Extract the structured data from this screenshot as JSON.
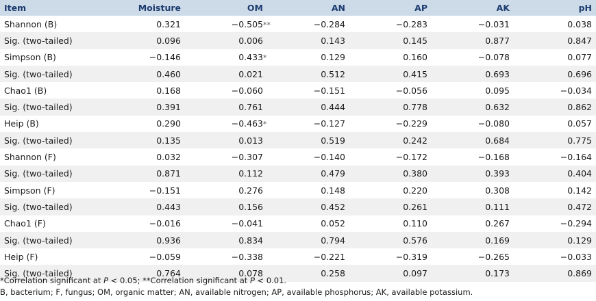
{
  "table": {
    "headers": [
      "Item",
      "Moisture",
      "OM",
      "AN",
      "AP",
      "AK",
      "pH"
    ],
    "rows": [
      {
        "item": "Shannon (B)",
        "cells": [
          {
            "v": "0.321"
          },
          {
            "v": "−0.505",
            "sig": "**"
          },
          {
            "v": "−0.284"
          },
          {
            "v": "−0.283"
          },
          {
            "v": "−0.031"
          },
          {
            "v": "0.038"
          }
        ]
      },
      {
        "item": "Sig. (two-tailed)",
        "cells": [
          {
            "v": "0.096"
          },
          {
            "v": "0.006"
          },
          {
            "v": "0.143"
          },
          {
            "v": "0.145"
          },
          {
            "v": "0.877"
          },
          {
            "v": "0.847"
          }
        ]
      },
      {
        "item": "Simpson (B)",
        "cells": [
          {
            "v": "−0.146"
          },
          {
            "v": "0.433",
            "sig": "*"
          },
          {
            "v": "0.129"
          },
          {
            "v": "0.160"
          },
          {
            "v": "−0.078"
          },
          {
            "v": "0.077"
          }
        ]
      },
      {
        "item": "Sig. (two-tailed)",
        "cells": [
          {
            "v": "0.460"
          },
          {
            "v": "0.021"
          },
          {
            "v": "0.512"
          },
          {
            "v": "0.415"
          },
          {
            "v": "0.693"
          },
          {
            "v": "0.696"
          }
        ]
      },
      {
        "item": "Chao1 (B)",
        "cells": [
          {
            "v": "0.168"
          },
          {
            "v": "−0.060"
          },
          {
            "v": "−0.151"
          },
          {
            "v": "−0.056"
          },
          {
            "v": "0.095"
          },
          {
            "v": "−0.034"
          }
        ]
      },
      {
        "item": "Sig. (two-tailed)",
        "cells": [
          {
            "v": "0.391"
          },
          {
            "v": "0.761"
          },
          {
            "v": "0.444"
          },
          {
            "v": "0.778"
          },
          {
            "v": "0.632"
          },
          {
            "v": "0.862"
          }
        ]
      },
      {
        "item": "Heip (B)",
        "cells": [
          {
            "v": "0.290"
          },
          {
            "v": "−0.463",
            "sig": "*"
          },
          {
            "v": "−0.127"
          },
          {
            "v": "−0.229"
          },
          {
            "v": "−0.080"
          },
          {
            "v": "0.057"
          }
        ]
      },
      {
        "item": "Sig. (two-tailed)",
        "cells": [
          {
            "v": "0.135"
          },
          {
            "v": "0.013"
          },
          {
            "v": "0.519"
          },
          {
            "v": "0.242"
          },
          {
            "v": "0.684"
          },
          {
            "v": "0.775"
          }
        ]
      },
      {
        "item": "Shannon (F)",
        "cells": [
          {
            "v": "0.032"
          },
          {
            "v": "−0.307"
          },
          {
            "v": "−0.140"
          },
          {
            "v": "−0.172"
          },
          {
            "v": "−0.168"
          },
          {
            "v": "−0.164"
          }
        ]
      },
      {
        "item": "Sig. (two-tailed)",
        "cells": [
          {
            "v": "0.871"
          },
          {
            "v": "0.112"
          },
          {
            "v": "0.479"
          },
          {
            "v": "0.380"
          },
          {
            "v": "0.393"
          },
          {
            "v": "0.404"
          }
        ]
      },
      {
        "item": "Simpson (F)",
        "cells": [
          {
            "v": "−0.151"
          },
          {
            "v": "0.276"
          },
          {
            "v": "0.148"
          },
          {
            "v": "0.220"
          },
          {
            "v": "0.308"
          },
          {
            "v": "0.142"
          }
        ]
      },
      {
        "item": "Sig. (two-tailed)",
        "cells": [
          {
            "v": "0.443"
          },
          {
            "v": "0.156"
          },
          {
            "v": "0.452"
          },
          {
            "v": "0.261"
          },
          {
            "v": "0.111"
          },
          {
            "v": "0.472"
          }
        ]
      },
      {
        "item": "Chao1 (F)",
        "cells": [
          {
            "v": "−0.016"
          },
          {
            "v": "−0.041"
          },
          {
            "v": "0.052"
          },
          {
            "v": "0.110"
          },
          {
            "v": "0.267"
          },
          {
            "v": "−0.294"
          }
        ]
      },
      {
        "item": "Sig. (two-tailed)",
        "cells": [
          {
            "v": "0.936"
          },
          {
            "v": "0.834"
          },
          {
            "v": "0.794"
          },
          {
            "v": "0.576"
          },
          {
            "v": "0.169"
          },
          {
            "v": "0.129"
          }
        ]
      },
      {
        "item": "Heip (F)",
        "cells": [
          {
            "v": "−0.059"
          },
          {
            "v": "−0.338"
          },
          {
            "v": "−0.221"
          },
          {
            "v": "−0.319"
          },
          {
            "v": "−0.265"
          },
          {
            "v": "−0.033"
          }
        ]
      },
      {
        "item": "Sig. (two-tailed)",
        "cells": [
          {
            "v": "0.764"
          },
          {
            "v": "0.078"
          },
          {
            "v": "0.258"
          },
          {
            "v": "0.097"
          },
          {
            "v": "0.173"
          },
          {
            "v": "0.869"
          }
        ]
      }
    ]
  },
  "footnotes": {
    "sig1_mark": "*",
    "sig1_text": "Correlation significant at ",
    "p_symbol": "P",
    "sig1_threshold": " < 0.05; ",
    "sig2_mark": "**",
    "sig2_text": "Correlation significant at ",
    "sig2_threshold": " < 0.01.",
    "abbreviations": "B, bacterium; F, fungus; OM, organic matter; AN, available nitrogen; AP, available phosphorus; AK, available potassium."
  },
  "colors": {
    "header_bg": "#cddbe9",
    "header_text": "#1d3c6e",
    "alt_row_bg": "#f0f0f0"
  }
}
